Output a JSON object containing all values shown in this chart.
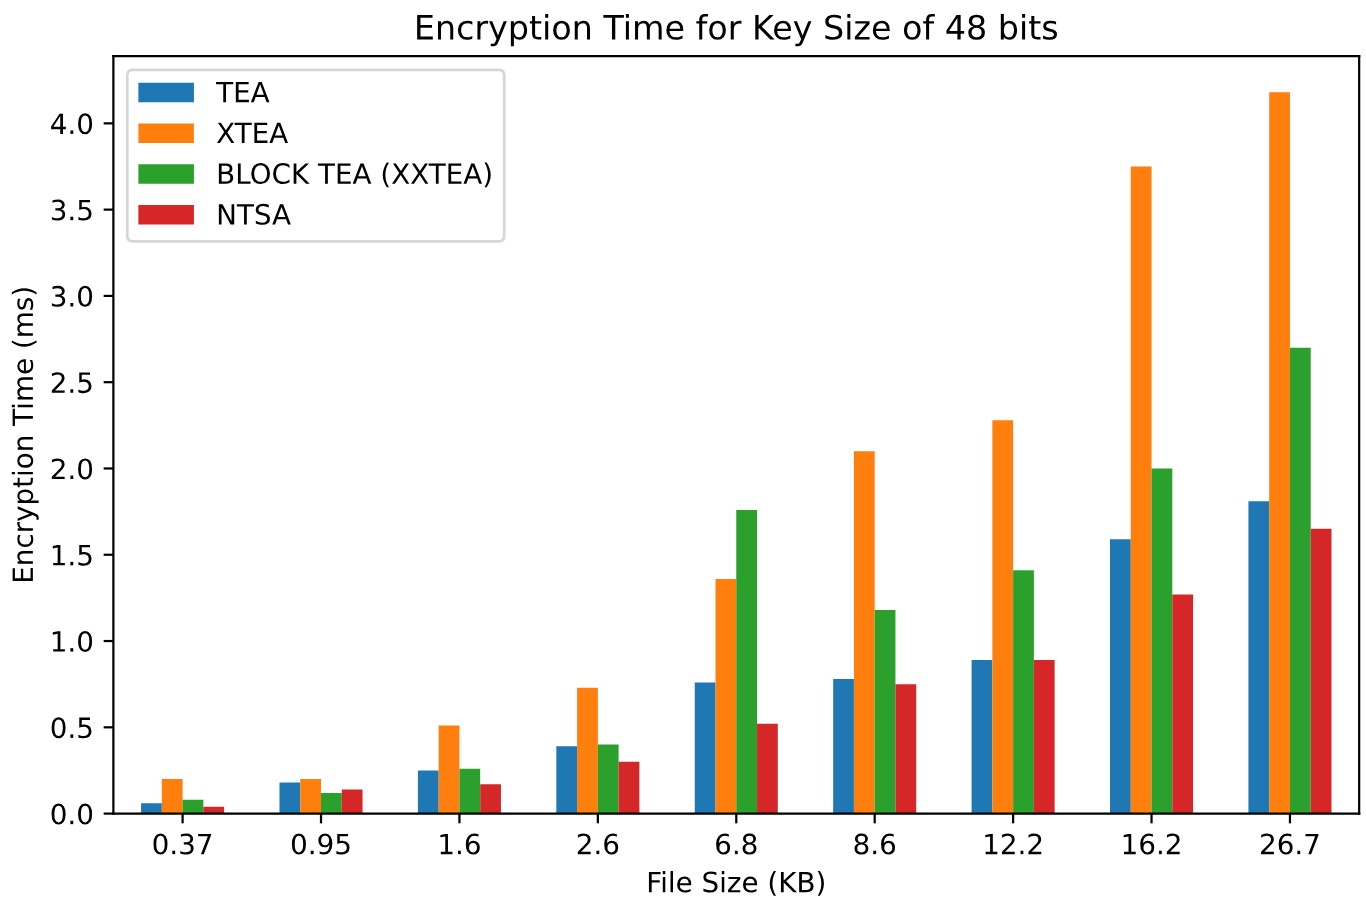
{
  "chart_data": {
    "type": "bar",
    "title": "Encryption Time for Key Size of 48 bits",
    "xlabel": "File Size (KB)",
    "ylabel": "Encryption Time (ms)",
    "categories": [
      "0.37",
      "0.95",
      "1.6",
      "2.6",
      "6.8",
      "8.6",
      "12.2",
      "16.2",
      "26.7"
    ],
    "series": [
      {
        "name": "TEA",
        "color": "#1f77b4",
        "values": [
          0.06,
          0.18,
          0.25,
          0.39,
          0.76,
          0.78,
          0.89,
          1.59,
          1.81
        ]
      },
      {
        "name": "XTEA",
        "color": "#ff7f0e",
        "values": [
          0.2,
          0.2,
          0.51,
          0.73,
          1.36,
          2.1,
          2.28,
          3.75,
          4.18
        ]
      },
      {
        "name": "BLOCK TEA (XXTEA)",
        "color": "#2ca02c",
        "values": [
          0.08,
          0.12,
          0.26,
          0.4,
          1.76,
          1.18,
          1.41,
          2.0,
          2.7
        ]
      },
      {
        "name": "NTSA",
        "color": "#d62728",
        "values": [
          0.04,
          0.14,
          0.17,
          0.3,
          0.52,
          0.75,
          0.89,
          1.27,
          1.65
        ]
      }
    ],
    "ylim": [
      0,
      4.39
    ],
    "yticks": [
      {
        "value": 0,
        "label": "0.0"
      },
      {
        "value": 0.5,
        "label": "0.5"
      },
      {
        "value": 1,
        "label": "1.0"
      },
      {
        "value": 1.5,
        "label": "1.5"
      },
      {
        "value": 2,
        "label": "2.0"
      },
      {
        "value": 2.5,
        "label": "2.5"
      },
      {
        "value": 3,
        "label": "3.0"
      },
      {
        "value": 3.5,
        "label": "3.5"
      },
      {
        "value": 4,
        "label": "4.0"
      }
    ],
    "legend": "top left",
    "grid": false
  }
}
